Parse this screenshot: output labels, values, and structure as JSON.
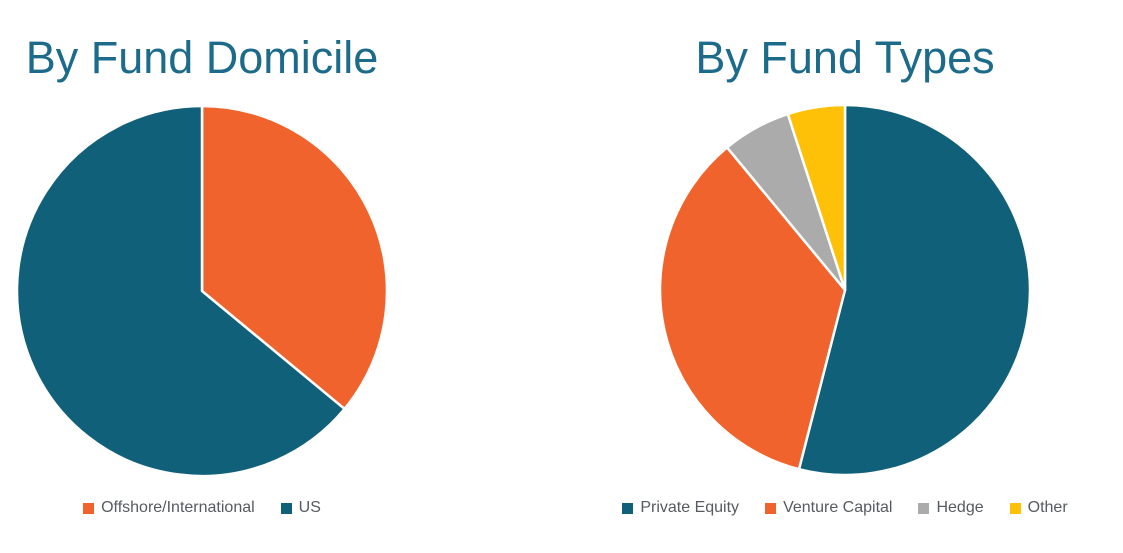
{
  "page": {
    "background": "#ffffff"
  },
  "style": {
    "title_color": "#1d6b8b",
    "legend_text_color": "#565b61",
    "slice_border_color": "#ffffff"
  },
  "chart_data": [
    {
      "type": "pie",
      "title": "By Fund Domicile",
      "labels": [
        "Offshore/International",
        "US"
      ],
      "values": [
        36,
        64
      ],
      "unit": "percent (estimated from slice angles; no data labels shown)",
      "colors": [
        "#f0632c",
        "#11607a"
      ],
      "start_angle_deg": 0,
      "direction": "clockwise",
      "legend_position": "bottom"
    },
    {
      "type": "pie",
      "title": "By Fund Types",
      "labels": [
        "Private Equity",
        "Venture Capital",
        "Hedge",
        "Other"
      ],
      "values": [
        54,
        35,
        6,
        5
      ],
      "unit": "percent (estimated from slice angles; no data labels shown)",
      "colors": [
        "#11607a",
        "#f0632c",
        "#ababab",
        "#ffc107"
      ],
      "start_angle_deg": 0,
      "direction": "clockwise",
      "legend_position": "bottom"
    }
  ]
}
